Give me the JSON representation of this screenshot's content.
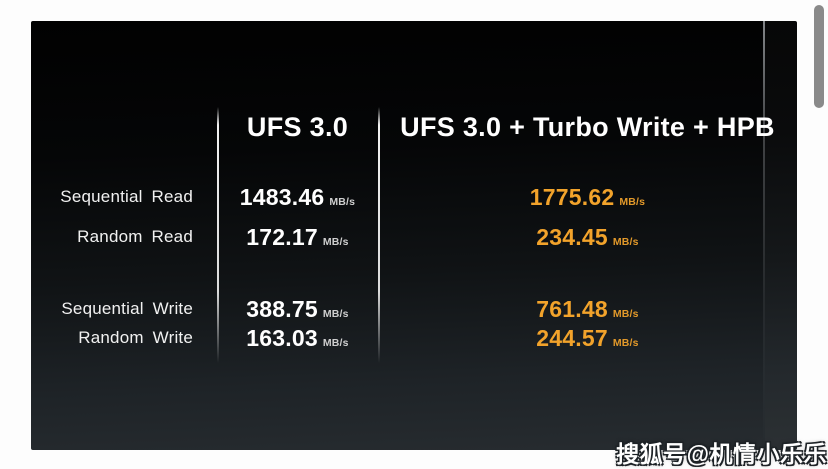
{
  "slide": {
    "accent_color": "#F2A32B",
    "background_top": "#010101",
    "background_bottom": "#272c30",
    "header": {
      "col1": "UFS 3.0",
      "col2": "UFS 3.0 + Turbo Write + HPB"
    },
    "unit": "MB/s",
    "rows": [
      {
        "label": "Sequential Read",
        "base": "1483.46",
        "boosted": "1775.62"
      },
      {
        "label": "Random Read",
        "base": "172.17",
        "boosted": "234.45"
      },
      {
        "label": "Sequential Write",
        "base": "388.75",
        "boosted": "761.48"
      },
      {
        "label": "Random Write",
        "base": "163.03",
        "boosted": "244.57"
      }
    ]
  },
  "watermark": {
    "text": "搜狐号@机情小乐乐"
  },
  "chart_data": {
    "type": "table",
    "title": "",
    "columns": [
      "",
      "UFS 3.0",
      "UFS 3.0 + Turbo Write + HPB"
    ],
    "unit": "MB/s",
    "categories": [
      "Sequential Read",
      "Random Read",
      "Sequential Write",
      "Random Write"
    ],
    "series": [
      {
        "name": "UFS 3.0",
        "values": [
          1483.46,
          172.17,
          388.75,
          163.03
        ]
      },
      {
        "name": "UFS 3.0 + Turbo Write + HPB",
        "values": [
          1775.62,
          234.45,
          761.48,
          244.57
        ]
      }
    ],
    "layout_hints": {
      "highlight_series": "UFS 3.0 + Turbo Write + HPB",
      "highlight_color": "#F2A32B",
      "background": "dark-gradient"
    }
  }
}
